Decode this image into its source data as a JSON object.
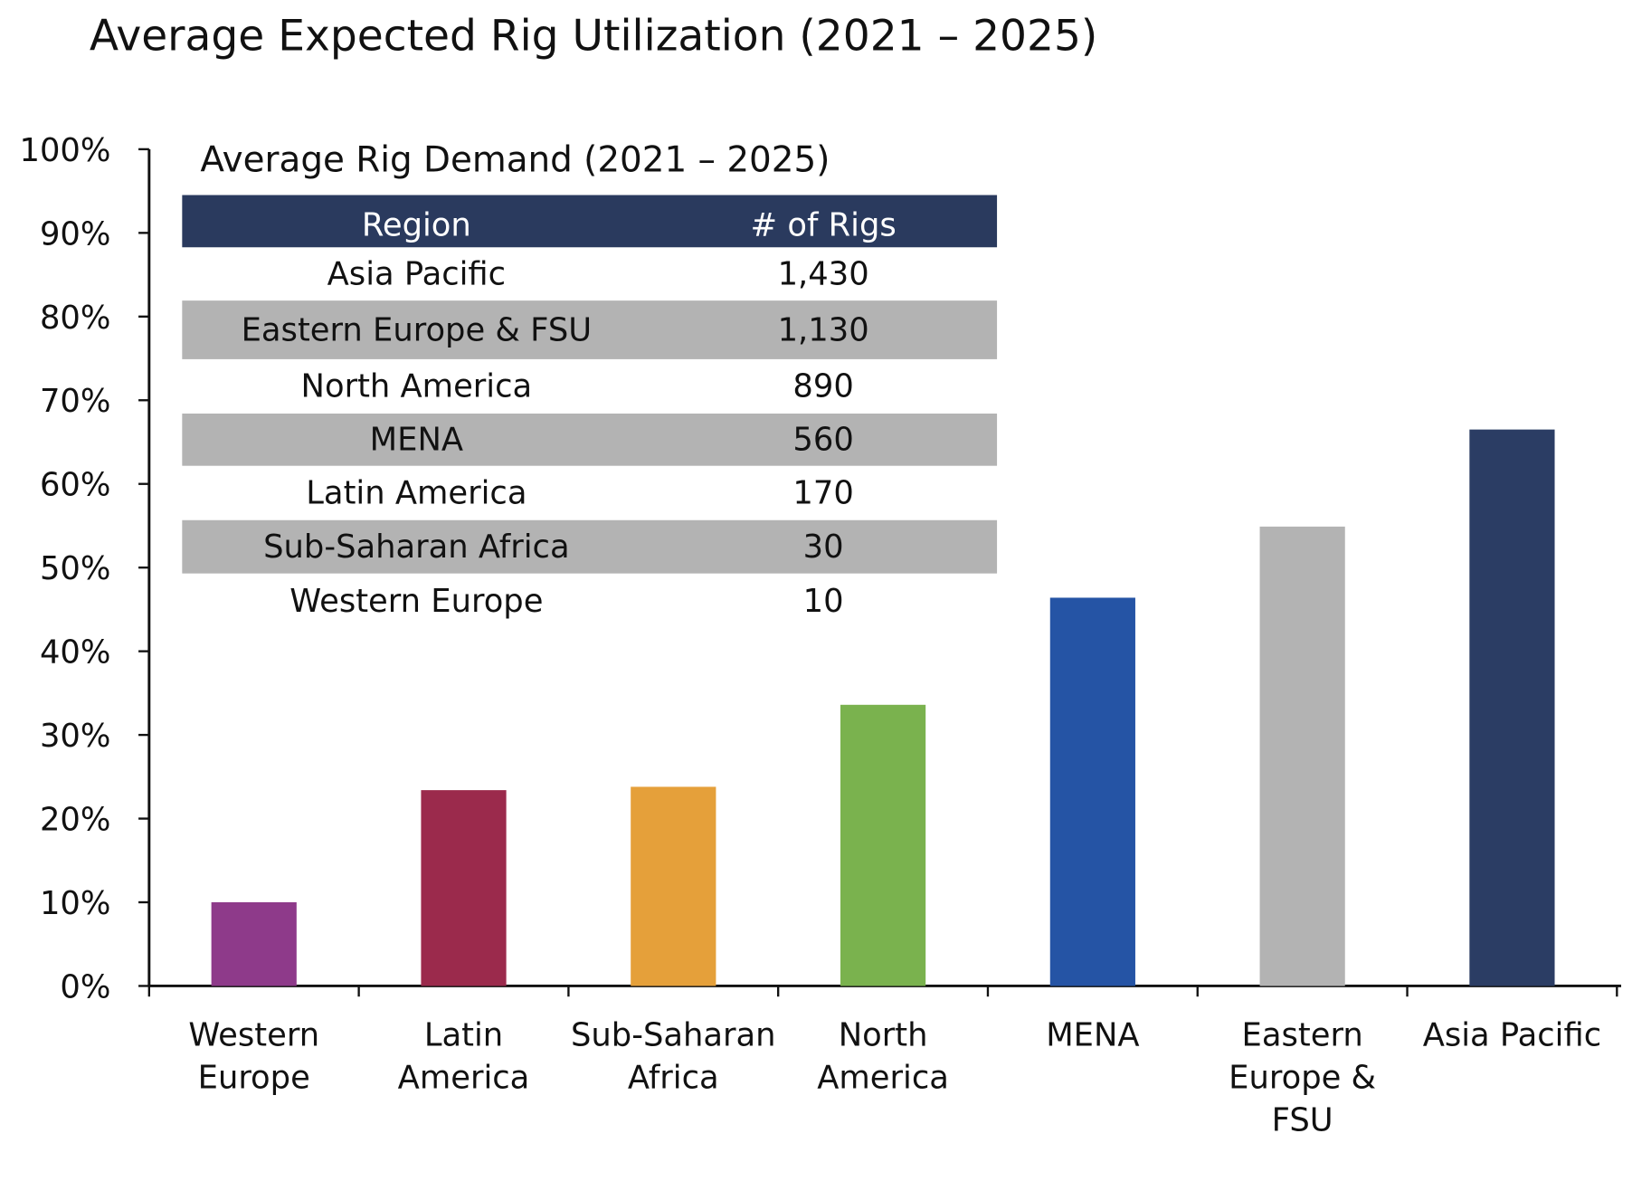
{
  "chart_data": {
    "type": "bar",
    "title": "Average Expected Rig Utilization (2021 – 2025)",
    "xlabel": "",
    "ylabel": "",
    "ylim": [
      0,
      100
    ],
    "ytick_step": 10,
    "ytick_format": "percent",
    "grid": false,
    "legend": "none",
    "categories": [
      [
        "Western",
        "Europe"
      ],
      [
        "Latin",
        "America"
      ],
      [
        "Sub-Saharan",
        "Africa"
      ],
      [
        "North",
        "America"
      ],
      [
        "MENA"
      ],
      [
        "Eastern",
        "Europe &",
        "FSU"
      ],
      [
        "Asia Pacific"
      ]
    ],
    "values": [
      10,
      23.4,
      23.8,
      33.6,
      46.4,
      54.9,
      66.5
    ],
    "colors": [
      "#8e3a8a",
      "#9b2a4c",
      "#e5a03a",
      "#7ab24e",
      "#2554a5",
      "#b3b3b3",
      "#2b3d64"
    ],
    "inset_table": {
      "title": "Average Rig Demand (2021 – 2025)",
      "header_color": "#2a3a5e",
      "stripe_color": "#b3b3b3",
      "columns": [
        "Region",
        "# of Rigs"
      ],
      "rows": [
        [
          "Asia Pacific",
          "1,430"
        ],
        [
          "Eastern Europe & FSU",
          "1,130"
        ],
        [
          "North America",
          "890"
        ],
        [
          "MENA",
          "560"
        ],
        [
          "Latin America",
          "170"
        ],
        [
          "Sub-Saharan Africa",
          "30"
        ],
        [
          "Western Europe",
          "10"
        ]
      ]
    }
  }
}
